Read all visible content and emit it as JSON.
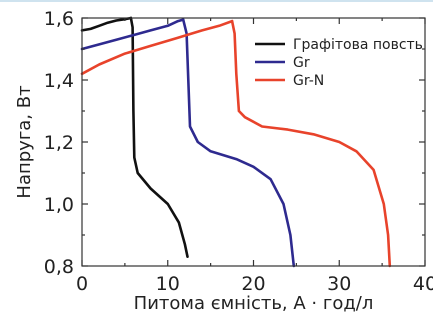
{
  "chart_data": {
    "type": "line",
    "xlabel": "Питома ємність, А · год/л",
    "ylabel": "Напруга, Вт",
    "xlim": [
      0,
      40
    ],
    "ylim": [
      0.8,
      1.6
    ],
    "x_ticks": [
      0,
      10,
      20,
      30,
      40
    ],
    "y_ticks": [
      0.8,
      1.0,
      1.2,
      1.4,
      1.6
    ],
    "x_tick_labels": [
      "0",
      "10",
      "20",
      "30",
      "40"
    ],
    "y_tick_labels": [
      "0,8",
      "1,0",
      "1,2",
      "1,4",
      "1,6"
    ],
    "grid": false,
    "legend_position": "top-right",
    "series": [
      {
        "name": "Графітова повсть",
        "color": "#111111",
        "charge": [
          [
            0,
            1.56
          ],
          [
            1,
            1.565
          ],
          [
            2,
            1.575
          ],
          [
            3,
            1.585
          ],
          [
            4,
            1.592
          ],
          [
            5,
            1.596
          ],
          [
            5.7,
            1.6
          ]
        ],
        "discharge": [
          [
            5.7,
            1.6
          ],
          [
            5.9,
            1.57
          ],
          [
            6.0,
            1.3
          ],
          [
            6.1,
            1.15
          ],
          [
            6.5,
            1.1
          ],
          [
            8,
            1.05
          ],
          [
            10,
            1.0
          ],
          [
            11.3,
            0.94
          ],
          [
            12,
            0.87
          ],
          [
            12.3,
            0.83
          ]
        ]
      },
      {
        "name": "Gr",
        "color": "#2e2a8f",
        "charge": [
          [
            0,
            1.5
          ],
          [
            2,
            1.515
          ],
          [
            4,
            1.53
          ],
          [
            6,
            1.545
          ],
          [
            8,
            1.56
          ],
          [
            10,
            1.575
          ],
          [
            11.2,
            1.59
          ],
          [
            11.8,
            1.595
          ]
        ],
        "discharge": [
          [
            11.8,
            1.595
          ],
          [
            12.2,
            1.55
          ],
          [
            12.4,
            1.4
          ],
          [
            12.6,
            1.25
          ],
          [
            13.5,
            1.2
          ],
          [
            15,
            1.17
          ],
          [
            18,
            1.145
          ],
          [
            20,
            1.12
          ],
          [
            22,
            1.08
          ],
          [
            23.5,
            1.0
          ],
          [
            24.3,
            0.9
          ],
          [
            24.7,
            0.8
          ]
        ]
      },
      {
        "name": "Gr-N",
        "color": "#e8432b",
        "charge": [
          [
            0,
            1.42
          ],
          [
            2,
            1.45
          ],
          [
            5,
            1.485
          ],
          [
            8,
            1.51
          ],
          [
            11,
            1.535
          ],
          [
            14,
            1.56
          ],
          [
            16,
            1.575
          ],
          [
            17.5,
            1.59
          ]
        ],
        "discharge": [
          [
            17.5,
            1.59
          ],
          [
            17.8,
            1.55
          ],
          [
            18.0,
            1.42
          ],
          [
            18.3,
            1.3
          ],
          [
            19,
            1.28
          ],
          [
            21,
            1.25
          ],
          [
            24,
            1.24
          ],
          [
            27,
            1.225
          ],
          [
            30,
            1.2
          ],
          [
            32,
            1.17
          ],
          [
            34,
            1.11
          ],
          [
            35.2,
            1.0
          ],
          [
            35.7,
            0.9
          ],
          [
            35.9,
            0.8
          ]
        ]
      }
    ]
  }
}
